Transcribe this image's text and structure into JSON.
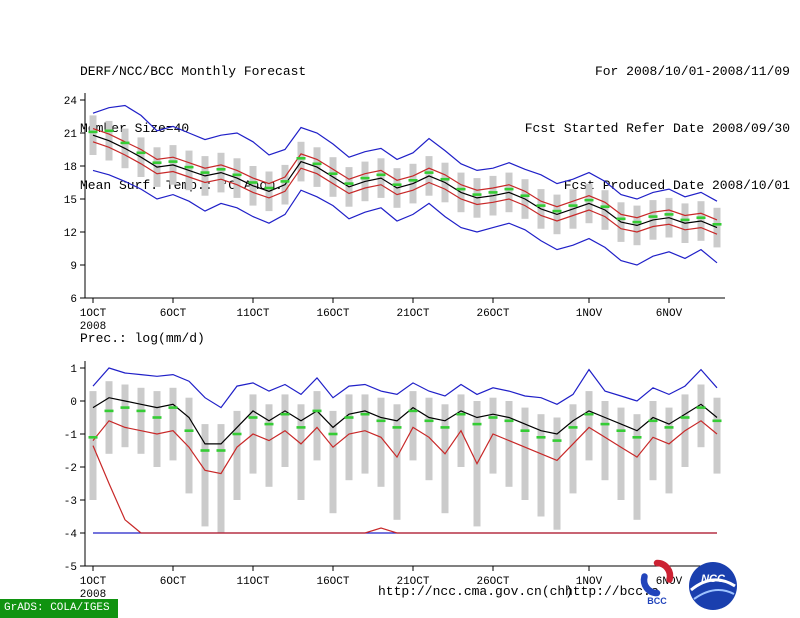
{
  "header": {
    "left": [
      "DERF/NCC/BCC Monthly Forecast",
      "Member Size=40",
      "Mean Surf. Temp.: °C Anom."
    ],
    "right": [
      "For 2008/10/01-2008/11/09",
      "Fcst Started Refer Date 2008/09/30",
      "Fcst Produced Date 2008/10/01"
    ]
  },
  "footer": {
    "url_ncc": "http://ncc.cma.gov.cn(ch)",
    "url_bcc": "http://bcc.c",
    "grads_credit": "GrADS: COLA/IGES"
  },
  "logos": {
    "bcc_label": "BCC",
    "ncc_label": "NCC"
  },
  "colors": {
    "bar_gray": "#cbcbcb",
    "envelope_blue": "#2020c8",
    "quartile_red": "#c82828",
    "mean_black": "#000000",
    "obs_green": "#35cc35",
    "badge_green": "#109310",
    "logo_red": "#cc2233",
    "logo_blue": "#1a3fae"
  },
  "chart_data": [
    {
      "type": "line",
      "title": "Mean Surf. Temp.: °C Anom.",
      "ylabel": "°C",
      "ylim": [
        6,
        24.8
      ],
      "yticks": [
        24,
        21,
        18,
        15,
        12,
        9,
        6
      ],
      "x_range": [
        "2008-10-01",
        "2008-11-09"
      ],
      "grid": false,
      "xticks": [
        {
          "day": 0,
          "label": "1OCT",
          "sub": "2008"
        },
        {
          "day": 5,
          "label": "6OCT"
        },
        {
          "day": 10,
          "label": "11OCT"
        },
        {
          "day": 15,
          "label": "16OCT"
        },
        {
          "day": 20,
          "label": "21OCT"
        },
        {
          "day": 25,
          "label": "26OCT"
        },
        {
          "day": 31,
          "label": "1NOV"
        },
        {
          "day": 36,
          "label": "6NOV"
        }
      ],
      "series": [
        {
          "name": "temp-ensemble-spread",
          "type": "bar-range",
          "color": "#cbcbcb",
          "top": [
            22.6,
            22.1,
            21.4,
            20.6,
            19.7,
            19.9,
            19.4,
            18.9,
            19.2,
            18.7,
            18.0,
            17.5,
            18.1,
            20.2,
            19.7,
            18.8,
            17.9,
            18.4,
            18.7,
            17.8,
            18.2,
            18.9,
            18.3,
            17.4,
            16.9,
            17.1,
            17.4,
            16.8,
            15.9,
            15.4,
            15.9,
            16.4,
            15.8,
            14.7,
            14.4,
            14.9,
            15.1,
            14.6,
            14.8,
            14.2
          ],
          "bottom": [
            19.0,
            18.5,
            17.8,
            17.0,
            16.1,
            16.3,
            15.8,
            15.3,
            15.6,
            15.1,
            14.4,
            13.9,
            14.5,
            16.6,
            16.1,
            15.2,
            14.3,
            14.8,
            15.1,
            14.2,
            14.6,
            15.3,
            14.7,
            13.8,
            13.3,
            13.5,
            13.8,
            13.2,
            12.3,
            11.8,
            12.3,
            12.8,
            12.2,
            11.1,
            10.8,
            11.3,
            11.5,
            11.0,
            11.2,
            10.6
          ]
        },
        {
          "name": "temp-ensemble-max",
          "type": "line",
          "color": "#2020c8",
          "values": [
            22.8,
            23.3,
            23.5,
            22.6,
            21.2,
            21.6,
            21.0,
            20.4,
            20.8,
            21.0,
            20.2,
            19.0,
            19.5,
            21.5,
            21.0,
            20.0,
            18.8,
            19.3,
            19.6,
            18.6,
            19.2,
            20.5,
            19.4,
            18.2,
            17.6,
            17.8,
            18.3,
            17.7,
            17.2,
            16.4,
            16.8,
            17.4,
            16.6,
            15.4,
            15.0,
            15.6,
            15.9,
            15.2,
            15.6,
            14.8
          ]
        },
        {
          "name": "temp-upper-quartile",
          "type": "line",
          "color": "#c82828",
          "values": [
            21.4,
            20.9,
            20.2,
            19.5,
            18.6,
            18.8,
            18.3,
            17.8,
            18.1,
            17.6,
            16.9,
            16.4,
            17.0,
            19.1,
            18.6,
            17.7,
            16.8,
            17.3,
            17.6,
            16.7,
            17.1,
            17.8,
            17.2,
            16.3,
            15.8,
            16.0,
            16.3,
            15.7,
            14.8,
            14.3,
            14.8,
            15.3,
            14.7,
            13.6,
            13.3,
            13.8,
            14.0,
            13.5,
            13.7,
            13.1
          ]
        },
        {
          "name": "temp-lower-quartile",
          "type": "line",
          "color": "#c82828",
          "values": [
            20.2,
            19.7,
            19.0,
            18.2,
            17.3,
            17.5,
            17.0,
            16.5,
            16.8,
            16.3,
            15.6,
            15.1,
            15.7,
            17.8,
            17.3,
            16.4,
            15.5,
            16.0,
            16.3,
            15.4,
            15.8,
            16.5,
            15.9,
            15.0,
            14.5,
            14.7,
            15.0,
            14.4,
            13.5,
            13.0,
            13.5,
            14.0,
            13.4,
            12.3,
            12.0,
            12.5,
            12.7,
            12.2,
            12.4,
            11.8
          ]
        },
        {
          "name": "temp-ensemble-min",
          "type": "line",
          "color": "#2020c8",
          "values": [
            17.6,
            17.2,
            16.6,
            15.9,
            15.0,
            15.4,
            14.8,
            13.9,
            14.6,
            14.2,
            13.4,
            12.8,
            13.6,
            15.8,
            15.2,
            14.4,
            13.2,
            13.8,
            14.2,
            13.0,
            13.6,
            14.6,
            13.4,
            12.4,
            12.0,
            12.4,
            12.8,
            12.2,
            11.2,
            10.4,
            10.8,
            11.4,
            10.6,
            9.4,
            9.0,
            9.8,
            10.2,
            9.6,
            10.4,
            9.2
          ]
        },
        {
          "name": "temp-ensemble-mean",
          "type": "line",
          "color": "#000000",
          "values": [
            20.8,
            20.3,
            19.6,
            18.8,
            17.9,
            18.1,
            17.6,
            17.1,
            17.4,
            16.9,
            16.2,
            15.7,
            16.3,
            18.4,
            17.9,
            17.0,
            16.1,
            16.6,
            16.9,
            16.0,
            16.4,
            17.1,
            16.5,
            15.6,
            15.1,
            15.3,
            15.6,
            15.0,
            14.1,
            13.6,
            14.1,
            14.6,
            14.0,
            12.9,
            12.6,
            13.1,
            13.3,
            12.8,
            13.0,
            12.4
          ]
        },
        {
          "name": "temp-median-marker",
          "type": "dash",
          "color": "#35cc35",
          "values": [
            21.1,
            21.2,
            20.1,
            19.2,
            18.3,
            18.4,
            17.9,
            17.4,
            17.7,
            17.2,
            16.5,
            16.0,
            16.6,
            18.7,
            18.2,
            17.3,
            16.4,
            16.9,
            17.2,
            16.3,
            16.7,
            17.4,
            16.8,
            15.9,
            15.4,
            15.6,
            15.9,
            15.3,
            14.4,
            13.9,
            14.4,
            14.9,
            14.3,
            13.2,
            12.9,
            13.4,
            13.6,
            13.1,
            13.3,
            12.7
          ]
        }
      ]
    },
    {
      "type": "line",
      "title": "Prec.: log(mm/d)",
      "ylabel": "log(mm/d)",
      "ylim": [
        -5,
        1.2
      ],
      "yticks": [
        1,
        0,
        -1,
        -2,
        -3,
        -4,
        -5
      ],
      "x_range": [
        "2008-10-01",
        "2008-11-09"
      ],
      "grid": false,
      "xticks": [
        {
          "day": 0,
          "label": "1OCT",
          "sub": "2008"
        },
        {
          "day": 5,
          "label": "6OCT"
        },
        {
          "day": 10,
          "label": "11OCT"
        },
        {
          "day": 15,
          "label": "16OCT"
        },
        {
          "day": 20,
          "label": "21OCT"
        },
        {
          "day": 25,
          "label": "26OCT"
        },
        {
          "day": 31,
          "label": "1NOV"
        },
        {
          "day": 36,
          "label": "6NOV"
        }
      ],
      "series": [
        {
          "name": "prec-ensemble-spread",
          "type": "bar-range",
          "color": "#cbcbcb",
          "top": [
            0.3,
            0.6,
            0.5,
            0.4,
            0.3,
            0.4,
            0.1,
            -0.7,
            -0.7,
            -0.3,
            0.2,
            -0.1,
            0.2,
            -0.1,
            0.3,
            -0.3,
            0.2,
            0.2,
            0.1,
            -0.1,
            0.3,
            0.1,
            -0.1,
            0.2,
            0.0,
            0.1,
            0.0,
            -0.2,
            -0.4,
            -0.5,
            -0.1,
            0.3,
            0.0,
            -0.2,
            -0.4,
            0.0,
            -0.2,
            0.2,
            0.5,
            0.1
          ],
          "bottom": [
            -3.0,
            -1.6,
            -1.4,
            -1.6,
            -2.0,
            -1.8,
            -2.8,
            -3.8,
            -4.0,
            -3.0,
            -2.2,
            -2.6,
            -2.0,
            -3.0,
            -1.8,
            -3.4,
            -2.4,
            -2.2,
            -2.6,
            -3.6,
            -1.8,
            -2.4,
            -3.4,
            -2.0,
            -3.8,
            -2.2,
            -2.6,
            -3.0,
            -3.5,
            -3.9,
            -2.8,
            -1.8,
            -2.4,
            -3.0,
            -3.6,
            -2.4,
            -2.8,
            -2.0,
            -1.4,
            -2.2
          ]
        },
        {
          "name": "prec-floor-min-blue",
          "type": "line",
          "color": "#2020c8",
          "values": [
            -4,
            -4,
            -4,
            -4,
            -4,
            -4,
            -4,
            -4,
            -4,
            -4,
            -4,
            -4,
            -4,
            -4,
            -4,
            -4,
            -4,
            -4,
            -4,
            -4,
            -4,
            -4,
            -4,
            -4,
            -4,
            -4,
            -4,
            -4,
            -4,
            -4,
            -4,
            -4,
            -4,
            -4,
            -4,
            -4,
            -4,
            -4,
            -4,
            -4
          ]
        },
        {
          "name": "prec-floor-min-red",
          "type": "line",
          "color": "#c82828",
          "values": [
            -1.35,
            -2.5,
            -3.6,
            -4,
            -4,
            -4,
            -4,
            -4,
            -4,
            -4,
            -4,
            -4,
            -4,
            -4,
            -4,
            -4,
            -4,
            -4,
            -3.85,
            -4,
            -4,
            -4,
            -4,
            -4,
            -4,
            -4,
            -4,
            -4,
            -4,
            -4,
            -4,
            -4,
            -4,
            -4,
            -4,
            -4,
            -4,
            -4,
            -4,
            -4
          ]
        },
        {
          "name": "prec-ensemble-max",
          "type": "line",
          "color": "#2020c8",
          "values": [
            0.45,
            1.0,
            0.85,
            0.8,
            0.75,
            0.8,
            0.6,
            0.1,
            -0.2,
            0.45,
            0.55,
            0.3,
            0.5,
            0.2,
            0.7,
            0.1,
            0.45,
            0.5,
            0.3,
            0.2,
            0.55,
            0.3,
            0.15,
            0.5,
            0.2,
            0.4,
            0.3,
            0.15,
            0.1,
            -0.1,
            0.2,
            0.95,
            0.3,
            0.15,
            0.0,
            0.4,
            0.2,
            0.45,
            0.95,
            0.4
          ]
        },
        {
          "name": "prec-lower-quartile",
          "type": "line",
          "color": "#c82828",
          "values": [
            -1.2,
            -0.6,
            -0.8,
            -0.9,
            -1.0,
            -0.9,
            -1.4,
            -2.1,
            -2.2,
            -1.4,
            -1.0,
            -1.2,
            -0.9,
            -1.3,
            -0.8,
            -1.4,
            -1.0,
            -0.9,
            -1.1,
            -1.7,
            -0.8,
            -1.1,
            -1.6,
            -0.9,
            -1.9,
            -1.0,
            -1.2,
            -1.4,
            -1.6,
            -1.8,
            -1.3,
            -0.8,
            -1.1,
            -1.4,
            -1.7,
            -1.1,
            -1.3,
            -0.9,
            -0.6,
            -1.0
          ]
        },
        {
          "name": "prec-ensemble-mean",
          "type": "line",
          "color": "#000000",
          "values": [
            -0.2,
            0.1,
            0.0,
            -0.1,
            -0.2,
            -0.1,
            -0.5,
            -1.3,
            -1.3,
            -0.8,
            -0.3,
            -0.6,
            -0.3,
            -0.6,
            -0.3,
            -0.8,
            -0.4,
            -0.3,
            -0.5,
            -0.6,
            -0.2,
            -0.5,
            -0.6,
            -0.3,
            -0.5,
            -0.4,
            -0.5,
            -0.7,
            -0.9,
            -1.0,
            -0.6,
            -0.3,
            -0.5,
            -0.7,
            -0.9,
            -0.5,
            -0.7,
            -0.4,
            -0.1,
            -0.5
          ]
        },
        {
          "name": "prec-median-marker",
          "type": "dash",
          "color": "#35cc35",
          "values": [
            -1.1,
            -0.3,
            -0.2,
            -0.3,
            -0.5,
            -0.2,
            -0.9,
            -1.5,
            -1.5,
            -1.0,
            -0.5,
            -0.7,
            -0.4,
            -0.8,
            -0.3,
            -1.0,
            -0.5,
            -0.4,
            -0.6,
            -0.8,
            -0.3,
            -0.6,
            -0.8,
            -0.4,
            -0.7,
            -0.5,
            -0.6,
            -0.9,
            -1.1,
            -1.2,
            -0.8,
            -0.4,
            -0.7,
            -0.9,
            -1.1,
            -0.6,
            -0.8,
            -0.5,
            -0.2,
            -0.6
          ]
        }
      ]
    }
  ]
}
